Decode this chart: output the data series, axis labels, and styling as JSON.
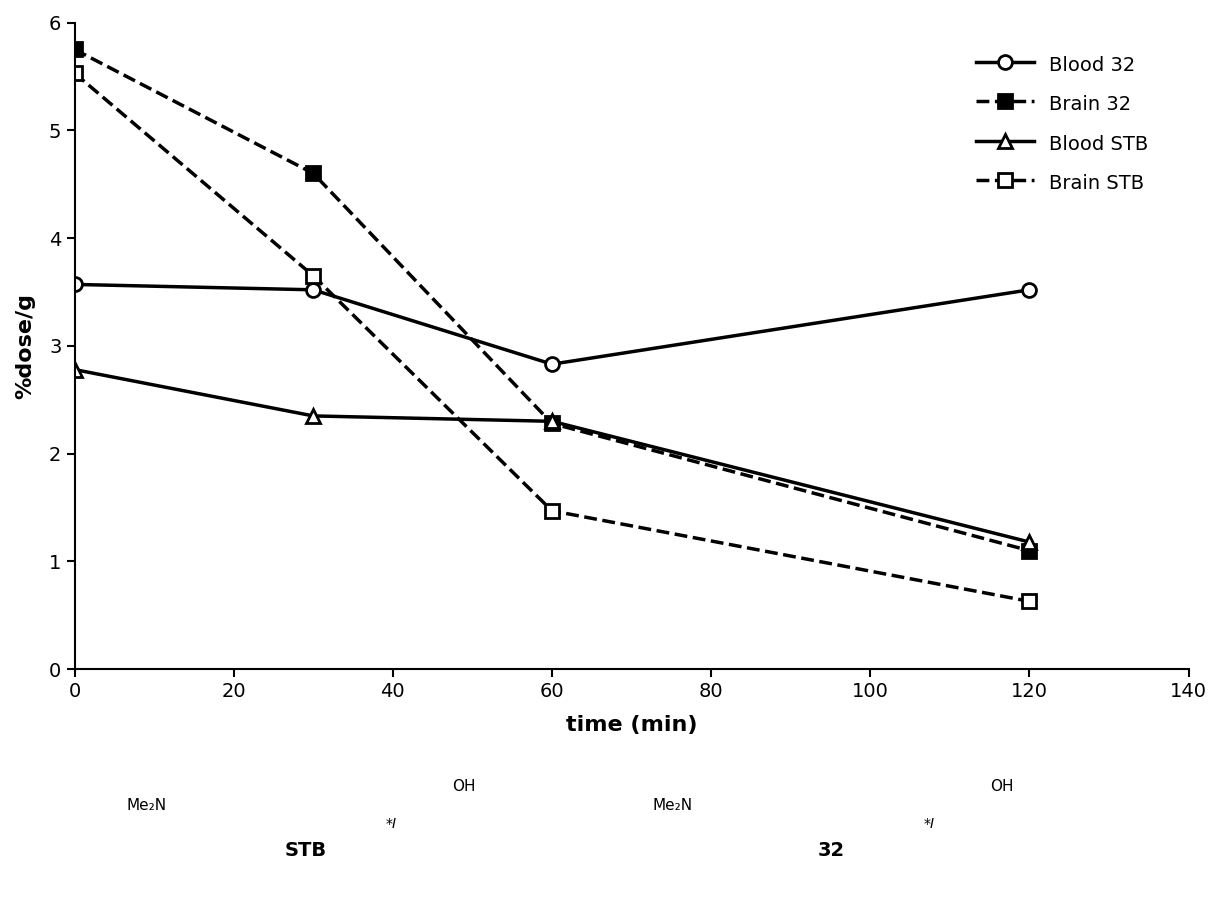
{
  "time_points": [
    0,
    30,
    60,
    120
  ],
  "blood32": [
    3.57,
    3.52,
    2.83,
    3.52
  ],
  "brain32": [
    5.75,
    4.6,
    2.28,
    1.1
  ],
  "blood_stb": [
    2.78,
    2.35,
    2.3,
    1.18
  ],
  "brain_stb": [
    5.53,
    3.65,
    1.47,
    0.63
  ],
  "xlabel": "time (min)",
  "ylabel": "%dose/g",
  "xlim": [
    0,
    140
  ],
  "ylim": [
    0,
    6
  ],
  "xticks": [
    0,
    20,
    40,
    60,
    80,
    100,
    120,
    140
  ],
  "yticks": [
    0,
    1,
    2,
    3,
    4,
    5,
    6
  ],
  "legend_labels": [
    "Blood 32",
    "Brain 32",
    "Blood STB",
    "Brain STB"
  ],
  "background_color": "#ffffff",
  "line_color": "#000000",
  "title_fontsize": 14,
  "axis_fontsize": 16,
  "tick_fontsize": 14,
  "legend_fontsize": 14
}
